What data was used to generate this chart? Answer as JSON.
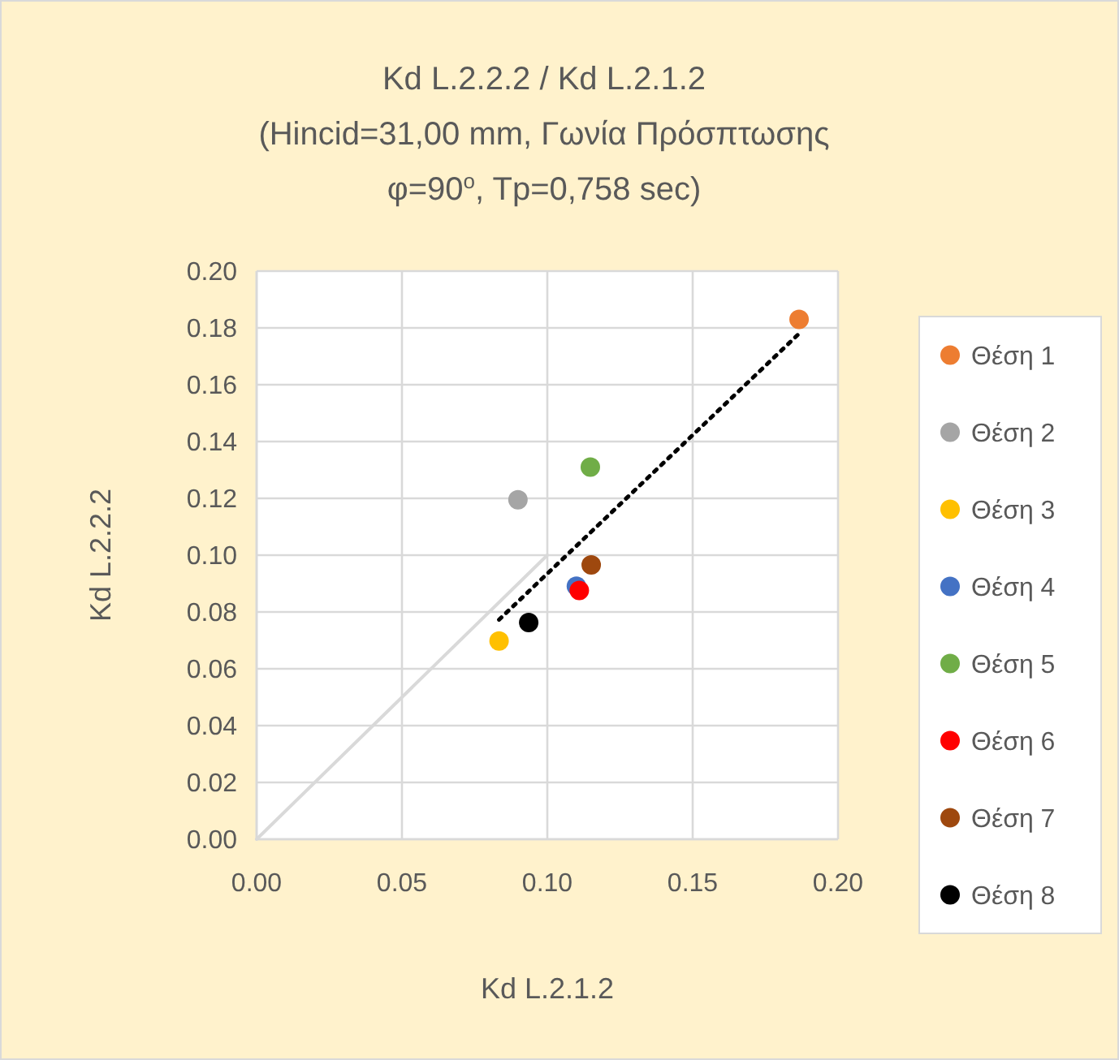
{
  "chart_data": {
    "type": "scatter",
    "title": "Kd L.2.2.2 / Kd L.2.1.2          (Hincid=31,00 mm, Γωνία Πρόσπτωσης φ=90$^{o}$,  Tp=0,758 sec)",
    "xlabel": "Kd L.2.1.2",
    "ylabel": "Kd L.2.2.2",
    "xlim": [
      0,
      0.2
    ],
    "ylim": [
      0,
      0.2
    ],
    "xticks": [
      {
        "value": 0,
        "label": "0.00"
      },
      {
        "value": 0.05,
        "label": "0.05"
      },
      {
        "value": 0.1,
        "label": "0.10"
      },
      {
        "value": 0.15,
        "label": "0.15"
      },
      {
        "value": 0.2,
        "label": "0.20"
      }
    ],
    "yticks": [
      {
        "value": 0,
        "label": "0.00"
      },
      {
        "value": 0.02,
        "label": "0.02"
      },
      {
        "value": 0.04,
        "label": "0.04"
      },
      {
        "value": 0.06,
        "label": "0.06"
      },
      {
        "value": 0.08,
        "label": "0.08"
      },
      {
        "value": 0.1,
        "label": "0.10"
      },
      {
        "value": 0.12,
        "label": "0.12"
      },
      {
        "value": 0.14,
        "label": "0.14"
      },
      {
        "value": 0.16,
        "label": "0.16"
      },
      {
        "value": 0.18,
        "label": "0.18"
      },
      {
        "value": 0.2,
        "label": "0.20"
      }
    ],
    "grid": true,
    "legend": "right",
    "marker": "circle",
    "series": [
      {
        "type": "line",
        "color": "#d9d9d9",
        "x": [
          0,
          0.1
        ],
        "values": [
          0,
          0.1
        ],
        "line_style": "solid",
        "marker": "none"
      },
      {
        "type": "line",
        "color": "#000000",
        "x": [
          0.0834,
          0.1866
        ],
        "values": [
          0.0773,
          0.178
        ],
        "line_style": "dotted",
        "marker": "none"
      },
      {
        "name": "Θέση 1",
        "color": "#ed7d31",
        "x": [
          0.1866
        ],
        "values": [
          0.183
        ]
      },
      {
        "name": "Θέση 2",
        "color": "#a5a5a5",
        "x": [
          0.0899
        ],
        "values": [
          0.1195
        ]
      },
      {
        "name": "Θέση 3",
        "color": "#ffc000",
        "x": [
          0.0834
        ],
        "values": [
          0.0698
        ]
      },
      {
        "name": "Θέση 4",
        "color": "#4472c4",
        "x": [
          0.11
        ],
        "values": [
          0.0891
        ]
      },
      {
        "name": "Θέση 5",
        "color": "#70ad47",
        "x": [
          0.1148
        ],
        "values": [
          0.131
        ]
      },
      {
        "name": "Θέση 6",
        "color": "#ff0000",
        "x": [
          0.111
        ],
        "values": [
          0.0876
        ]
      },
      {
        "name": "Θέση 7",
        "color": "#9e480e",
        "x": [
          0.1151
        ],
        "values": [
          0.0966
        ]
      },
      {
        "name": "Θέση 8",
        "color": "#000000",
        "x": [
          0.0936
        ],
        "values": [
          0.0763
        ]
      }
    ]
  }
}
